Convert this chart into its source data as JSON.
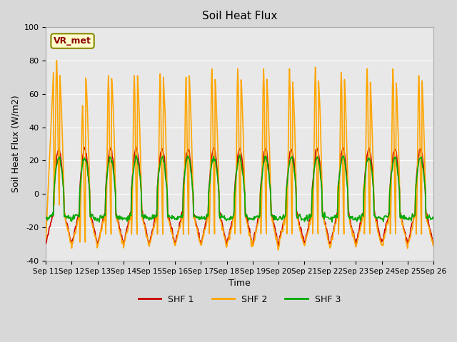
{
  "title": "Soil Heat Flux",
  "xlabel": "Time",
  "ylabel": "Soil Heat Flux (W/m2)",
  "ylim": [
    -40,
    100
  ],
  "yticks": [
    -40,
    -20,
    0,
    20,
    40,
    60,
    80,
    100
  ],
  "x_labels": [
    "Sep 11",
    "Sep 12",
    "Sep 13",
    "Sep 14",
    "Sep 15",
    "Sep 16",
    "Sep 17",
    "Sep 18",
    "Sep 19",
    "Sep 20",
    "Sep 21",
    "Sep 22",
    "Sep 23",
    "Sep 24",
    "Sep 25",
    "Sep 26"
  ],
  "shf1_color": "#cc0000",
  "shf2_color": "#ffa500",
  "shf3_color": "#00aa00",
  "bg_color": "#e8e8e8",
  "plot_bg": "#f0f0f0",
  "annotation_text": "VR_met",
  "annotation_bg": "#ffffcc",
  "annotation_border": "#888800",
  "grid_color": "#ffffff",
  "n_days": 15,
  "points_per_day": 48
}
